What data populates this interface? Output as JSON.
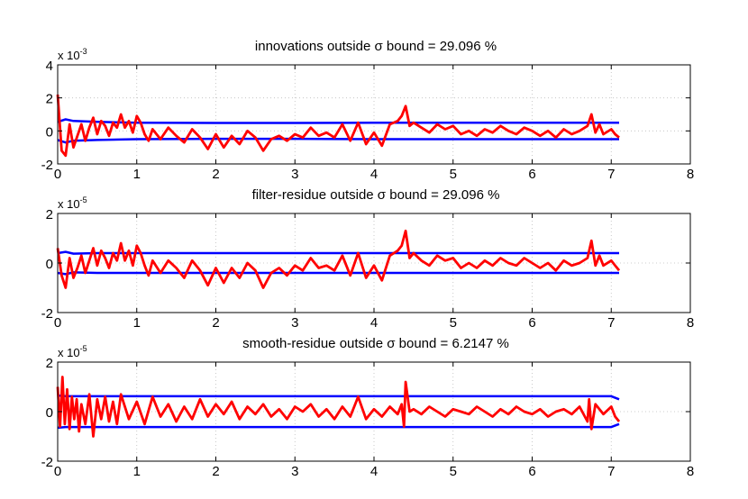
{
  "figure": {
    "background": "#ffffff",
    "series_colors": {
      "bound": "#0000ff",
      "residual": "#ff0000"
    }
  },
  "chart_data": [
    {
      "type": "line",
      "title": "innovations outside σ bound = 29.096 %",
      "xlabel": "",
      "ylabel": "",
      "xlim": [
        0,
        8
      ],
      "ylim": [
        -2,
        4
      ],
      "y_multiplier": "x 10",
      "y_multiplier_exponent": "-3",
      "xticks": [
        "0",
        "1",
        "2",
        "3",
        "4",
        "5",
        "6",
        "7",
        "8"
      ],
      "yticks": [
        "-2",
        "0",
        "2",
        "4"
      ],
      "grid": true,
      "bound_upper": {
        "x": [
          0,
          0.1,
          0.2,
          0.5,
          1,
          2,
          3,
          4,
          5,
          6,
          7,
          7.1
        ],
        "y": [
          0.55,
          0.7,
          0.6,
          0.55,
          0.5,
          0.48,
          0.48,
          0.5,
          0.5,
          0.5,
          0.5,
          0.5
        ]
      },
      "bound_lower": {
        "x": [
          0,
          0.1,
          0.2,
          0.5,
          1,
          2,
          3,
          4,
          5,
          6,
          7,
          7.1
        ],
        "y": [
          -0.55,
          -0.7,
          -0.6,
          -0.55,
          -0.5,
          -0.48,
          -0.48,
          -0.5,
          -0.5,
          -0.5,
          -0.5,
          -0.5
        ]
      },
      "residual": {
        "x": [
          0,
          0.05,
          0.1,
          0.15,
          0.2,
          0.25,
          0.3,
          0.35,
          0.4,
          0.45,
          0.5,
          0.55,
          0.6,
          0.65,
          0.7,
          0.75,
          0.8,
          0.85,
          0.9,
          0.95,
          1.0,
          1.05,
          1.1,
          1.15,
          1.2,
          1.3,
          1.4,
          1.5,
          1.6,
          1.7,
          1.8,
          1.9,
          2.0,
          2.1,
          2.2,
          2.3,
          2.4,
          2.5,
          2.6,
          2.7,
          2.8,
          2.9,
          3.0,
          3.1,
          3.2,
          3.3,
          3.4,
          3.5,
          3.6,
          3.7,
          3.8,
          3.9,
          4.0,
          4.1,
          4.2,
          4.3,
          4.35,
          4.4,
          4.45,
          4.5,
          4.6,
          4.7,
          4.8,
          4.9,
          5.0,
          5.1,
          5.2,
          5.3,
          5.4,
          5.5,
          5.6,
          5.7,
          5.8,
          5.9,
          6.0,
          6.1,
          6.2,
          6.3,
          6.4,
          6.5,
          6.6,
          6.7,
          6.75,
          6.8,
          6.85,
          6.9,
          7.0,
          7.05,
          7.1
        ],
        "y": [
          2.2,
          -1.2,
          -1.5,
          0.4,
          -1.0,
          -0.3,
          0.4,
          -0.6,
          0.2,
          0.8,
          -0.2,
          0.6,
          0.3,
          -0.3,
          0.5,
          0.2,
          1.0,
          0.2,
          0.6,
          -0.1,
          0.9,
          0.5,
          -0.2,
          -0.6,
          0.1,
          -0.5,
          0.2,
          -0.3,
          -0.7,
          0.1,
          -0.4,
          -1.1,
          -0.2,
          -1.0,
          -0.3,
          -0.8,
          0.0,
          -0.4,
          -1.2,
          -0.5,
          -0.3,
          -0.6,
          -0.2,
          -0.4,
          0.2,
          -0.3,
          -0.1,
          -0.4,
          0.4,
          -0.6,
          0.5,
          -0.8,
          -0.1,
          -0.9,
          0.4,
          0.6,
          0.9,
          1.5,
          0.3,
          0.5,
          0.2,
          -0.1,
          0.4,
          0.1,
          0.3,
          -0.2,
          0.0,
          -0.3,
          0.1,
          -0.1,
          0.3,
          0.0,
          -0.2,
          0.2,
          0.0,
          -0.3,
          0.0,
          -0.4,
          0.1,
          -0.2,
          0.0,
          0.3,
          1.0,
          -0.1,
          0.4,
          -0.2,
          0.1,
          -0.2,
          -0.4
        ]
      }
    },
    {
      "type": "line",
      "title": "filter-residue outside σ bound = 29.096 %",
      "xlabel": "",
      "ylabel": "",
      "xlim": [
        0,
        8
      ],
      "ylim": [
        -2,
        2
      ],
      "y_multiplier": "x 10",
      "y_multiplier_exponent": "-5",
      "xticks": [
        "0",
        "1",
        "2",
        "3",
        "4",
        "5",
        "6",
        "7",
        "8"
      ],
      "yticks": [
        "-2",
        "0",
        "2"
      ],
      "grid": true,
      "bound_upper": {
        "x": [
          0,
          0.1,
          0.2,
          0.5,
          1,
          2,
          3,
          4,
          5,
          6,
          7,
          7.1
        ],
        "y": [
          0.4,
          0.45,
          0.38,
          0.4,
          0.4,
          0.4,
          0.4,
          0.4,
          0.4,
          0.4,
          0.4,
          0.4
        ]
      },
      "bound_lower": {
        "x": [
          0,
          0.1,
          0.2,
          0.5,
          1,
          2,
          3,
          4,
          5,
          6,
          7,
          7.1
        ],
        "y": [
          -0.4,
          -0.45,
          -0.38,
          -0.4,
          -0.4,
          -0.4,
          -0.4,
          -0.4,
          -0.4,
          -0.4,
          -0.4,
          -0.4
        ]
      },
      "residual": {
        "x": [
          0,
          0.05,
          0.1,
          0.15,
          0.2,
          0.25,
          0.3,
          0.35,
          0.4,
          0.45,
          0.5,
          0.55,
          0.6,
          0.65,
          0.7,
          0.75,
          0.8,
          0.85,
          0.9,
          0.95,
          1.0,
          1.05,
          1.1,
          1.15,
          1.2,
          1.3,
          1.4,
          1.5,
          1.6,
          1.7,
          1.8,
          1.9,
          2.0,
          2.1,
          2.2,
          2.3,
          2.4,
          2.5,
          2.6,
          2.7,
          2.8,
          2.9,
          3.0,
          3.1,
          3.2,
          3.3,
          3.4,
          3.5,
          3.6,
          3.7,
          3.8,
          3.9,
          4.0,
          4.1,
          4.2,
          4.3,
          4.35,
          4.4,
          4.45,
          4.5,
          4.6,
          4.7,
          4.8,
          4.9,
          5.0,
          5.1,
          5.2,
          5.3,
          5.4,
          5.5,
          5.6,
          5.7,
          5.8,
          5.9,
          6.0,
          6.1,
          6.2,
          6.3,
          6.4,
          6.5,
          6.6,
          6.7,
          6.75,
          6.8,
          6.85,
          6.9,
          7.0,
          7.05,
          7.1
        ],
        "y": [
          0.6,
          -0.5,
          -1.0,
          0.2,
          -0.6,
          -0.2,
          0.3,
          -0.4,
          0.1,
          0.6,
          -0.1,
          0.5,
          0.2,
          -0.2,
          0.4,
          0.1,
          0.8,
          0.1,
          0.5,
          -0.1,
          0.7,
          0.4,
          -0.1,
          -0.5,
          0.1,
          -0.4,
          0.1,
          -0.2,
          -0.6,
          0.1,
          -0.3,
          -0.9,
          -0.2,
          -0.8,
          -0.2,
          -0.6,
          0.0,
          -0.3,
          -1.0,
          -0.4,
          -0.2,
          -0.5,
          -0.1,
          -0.3,
          0.2,
          -0.2,
          -0.1,
          -0.3,
          0.3,
          -0.5,
          0.4,
          -0.6,
          -0.1,
          -0.7,
          0.3,
          0.5,
          0.7,
          1.3,
          0.2,
          0.4,
          0.1,
          -0.1,
          0.3,
          0.1,
          0.2,
          -0.2,
          0.0,
          -0.2,
          0.1,
          -0.1,
          0.2,
          0.0,
          -0.1,
          0.2,
          0.0,
          -0.2,
          0.0,
          -0.3,
          0.1,
          -0.1,
          0.0,
          0.2,
          0.9,
          -0.1,
          0.3,
          -0.1,
          0.1,
          -0.1,
          -0.3
        ]
      }
    },
    {
      "type": "line",
      "title": "smooth-residue outside σ bound = 6.2147 %",
      "xlabel": "",
      "ylabel": "",
      "xlim": [
        0,
        8
      ],
      "ylim": [
        -2,
        2
      ],
      "y_multiplier": "x 10",
      "y_multiplier_exponent": "-5",
      "xticks": [
        "0",
        "1",
        "2",
        "3",
        "4",
        "5",
        "6",
        "7",
        "8"
      ],
      "yticks": [
        "-2",
        "0",
        "2"
      ],
      "grid": true,
      "bound_upper": {
        "x": [
          0,
          0.1,
          1,
          2,
          3,
          4,
          5,
          6,
          7,
          7.1
        ],
        "y": [
          0.65,
          0.62,
          0.62,
          0.62,
          0.62,
          0.62,
          0.62,
          0.62,
          0.62,
          0.5
        ]
      },
      "bound_lower": {
        "x": [
          0,
          0.1,
          1,
          2,
          3,
          4,
          5,
          6,
          7,
          7.1
        ],
        "y": [
          -0.65,
          -0.62,
          -0.62,
          -0.62,
          -0.62,
          -0.62,
          -0.62,
          -0.62,
          -0.62,
          -0.5
        ]
      },
      "residual": {
        "x": [
          0,
          0.03,
          0.06,
          0.09,
          0.12,
          0.15,
          0.18,
          0.21,
          0.24,
          0.27,
          0.3,
          0.35,
          0.4,
          0.45,
          0.5,
          0.55,
          0.6,
          0.65,
          0.7,
          0.75,
          0.8,
          0.9,
          1.0,
          1.1,
          1.2,
          1.3,
          1.4,
          1.5,
          1.6,
          1.7,
          1.8,
          1.9,
          2.0,
          2.1,
          2.2,
          2.3,
          2.4,
          2.5,
          2.6,
          2.7,
          2.8,
          2.9,
          3.0,
          3.1,
          3.2,
          3.3,
          3.4,
          3.5,
          3.6,
          3.7,
          3.8,
          3.9,
          4.0,
          4.1,
          4.2,
          4.3,
          4.35,
          4.38,
          4.4,
          4.45,
          4.5,
          4.6,
          4.7,
          4.8,
          4.9,
          5.0,
          5.1,
          5.2,
          5.3,
          5.4,
          5.5,
          5.6,
          5.7,
          5.8,
          5.9,
          6.0,
          6.1,
          6.2,
          6.3,
          6.4,
          6.5,
          6.6,
          6.7,
          6.72,
          6.75,
          6.8,
          6.9,
          7.0,
          7.05,
          7.1
        ],
        "y": [
          1.0,
          -0.6,
          1.4,
          -0.5,
          0.9,
          -0.7,
          0.6,
          -0.3,
          0.5,
          -0.8,
          0.3,
          -0.5,
          0.7,
          -1.0,
          0.5,
          -0.3,
          0.6,
          -0.4,
          0.4,
          -0.5,
          0.7,
          -0.3,
          0.4,
          -0.5,
          0.6,
          -0.2,
          0.3,
          -0.4,
          0.2,
          -0.3,
          0.5,
          -0.2,
          0.3,
          -0.1,
          0.4,
          -0.3,
          0.2,
          -0.1,
          0.3,
          -0.2,
          0.1,
          -0.3,
          0.2,
          0.0,
          0.3,
          -0.2,
          0.1,
          -0.3,
          0.2,
          -0.2,
          0.6,
          -0.3,
          0.1,
          -0.2,
          0.2,
          -0.1,
          0.3,
          -0.6,
          1.2,
          0.0,
          0.1,
          -0.1,
          0.2,
          0.0,
          -0.2,
          0.1,
          0.0,
          -0.1,
          0.2,
          0.0,
          -0.2,
          0.1,
          -0.1,
          0.2,
          0.0,
          -0.1,
          0.1,
          -0.2,
          0.0,
          0.1,
          -0.1,
          0.2,
          -0.4,
          0.5,
          -0.7,
          0.3,
          -0.1,
          0.2,
          -0.2,
          -0.4
        ]
      }
    }
  ]
}
